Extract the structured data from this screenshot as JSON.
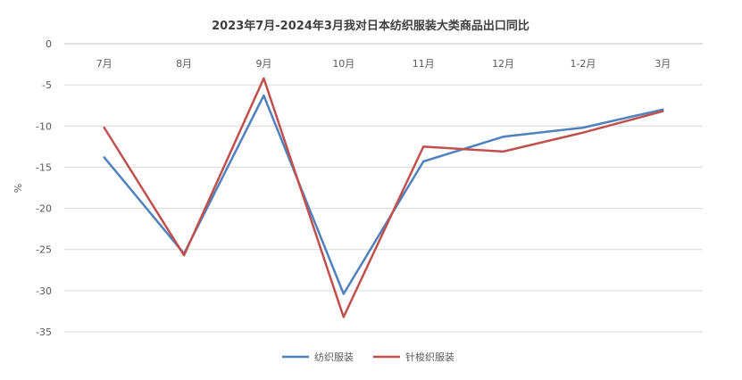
{
  "chart_data": {
    "type": "line",
    "title": "2023年7月-2024年3月我对日本纺织服装大类商品出口同比",
    "xlabel": "",
    "ylabel": "%",
    "categories": [
      "7月",
      "8月",
      "9月",
      "10月",
      "11月",
      "12月",
      "1-2月",
      "3月"
    ],
    "ylim": [
      -35,
      0
    ],
    "yticks": [
      0,
      -5,
      -10,
      -15,
      -20,
      -25,
      -30,
      -35
    ],
    "grid": true,
    "legend_position": "bottom",
    "series": [
      {
        "name": "纺织服装",
        "color": "#4f81bd",
        "values": [
          -13.8,
          -25.5,
          -6.3,
          -30.4,
          -14.3,
          -11.3,
          -10.2,
          -8.0
        ]
      },
      {
        "name": "针梭织服装",
        "color": "#c0504d",
        "values": [
          -10.2,
          -25.7,
          -4.2,
          -33.2,
          -12.5,
          -13.1,
          -10.8,
          -8.2
        ]
      }
    ]
  }
}
